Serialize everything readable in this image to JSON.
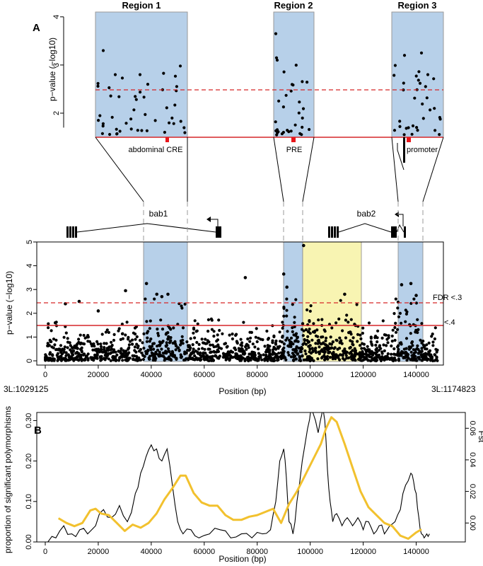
{
  "panel_a": {
    "label": "A",
    "top_ylabel": "p−value (−log10)",
    "main_ylabel": "p−value (−log10)",
    "xlabel": "Position (bp)",
    "left_coord": "3L:1029125",
    "right_coord": "3L:1174823",
    "gene1": "bab1",
    "gene2": "bab2",
    "fdr3_label": "FDR <.3",
    "fdr4_label": "<.4",
    "regions": [
      {
        "title": "Region 1",
        "feature": "abdominal CRE"
      },
      {
        "title": "Region 2",
        "feature": "PRE"
      },
      {
        "title": "Region 3",
        "feature": "promoter"
      }
    ]
  },
  "panel_b": {
    "label": "B",
    "ylabel_left": "proportion of significant polymorphisms",
    "ylabel_right": "Fst",
    "xlabel": "Position (bp)"
  },
  "colors": {
    "region_fill": "#b7d0e9",
    "highlight_fill": "#f8f4b2",
    "threshold_red": "#d62728",
    "fst_line": "#f2c12e"
  },
  "chart_data": [
    {
      "type": "scatter",
      "title": "",
      "xlabel": "Position (bp)",
      "ylabel": "p−value (−log10)",
      "xlim": [
        0,
        150000
      ],
      "ylim": [
        0,
        5
      ],
      "xticks": [
        0,
        20000,
        40000,
        60000,
        80000,
        100000,
        120000,
        140000
      ],
      "yticks": [
        0,
        1,
        2,
        3,
        4,
        5
      ],
      "regions_x": [
        [
          37000,
          53000
        ],
        [
          89000,
          96000
        ],
        [
          131500,
          141000
        ]
      ],
      "highlight_x": [
        96000,
        118000
      ],
      "thresholds": [
        {
          "label": "FDR <.3",
          "y": 2.45,
          "style": "dashed"
        },
        {
          "label": "<.4",
          "y": 1.47,
          "style": "solid"
        }
      ],
      "gene_bab1": [
        8000,
        64000
      ],
      "gene_bab2": [
        102000,
        130000
      ],
      "notable_points": [
        [
          3800,
          1.6
        ],
        [
          7600,
          2.4
        ],
        [
          12800,
          2.5
        ],
        [
          20000,
          2.1
        ],
        [
          30300,
          2.95
        ],
        [
          38200,
          3.25
        ],
        [
          42100,
          2.8
        ],
        [
          44000,
          2.7
        ],
        [
          46300,
          2.8
        ],
        [
          75500,
          3.5
        ],
        [
          90000,
          3.65
        ],
        [
          91200,
          3.1
        ],
        [
          97500,
          4.85
        ],
        [
          113000,
          2.8
        ],
        [
          134500,
          3.2
        ],
        [
          138000,
          3.25
        ],
        [
          140000,
          2.75
        ]
      ]
    },
    {
      "type": "line",
      "title": "",
      "xlabel": "Position (bp)",
      "ylabel": "proportion of significant polymorphisms",
      "y2label": "Fst",
      "xlim": [
        0,
        150000
      ],
      "ylim": [
        0,
        0.32
      ],
      "y2lim": [
        -0.012,
        0.07
      ],
      "xticks": [
        0,
        20000,
        40000,
        60000,
        80000,
        100000,
        120000,
        140000
      ],
      "yticks": [
        0.0,
        0.1,
        0.2,
        0.3
      ],
      "y2ticks": [
        0.0,
        0.02,
        0.04,
        0.06
      ],
      "series": [
        {
          "name": "proportion of significant polymorphisms",
          "x": [
            1000,
            4000,
            7000,
            10000,
            13000,
            16000,
            19000,
            22000,
            25000,
            28000,
            31000,
            34000,
            36000,
            38000,
            40000,
            42000,
            44000,
            46000,
            48000,
            50000,
            52000,
            55000,
            58000,
            62000,
            66000,
            70000,
            74000,
            78000,
            82000,
            85000,
            87000,
            88500,
            90000,
            91000,
            92000,
            93500,
            95000,
            97000,
            99000,
            100500,
            101000,
            103000,
            104500,
            105500,
            106500,
            107500,
            108500,
            110000,
            112000,
            114000,
            116000,
            118000,
            120000,
            122000,
            124000,
            126000,
            128000,
            130000,
            132000,
            134000,
            136000,
            138000,
            139000,
            140000,
            141000,
            142000,
            143000,
            144000,
            145000
          ],
          "values": [
            0.0,
            0.01,
            0.04,
            0.02,
            0.03,
            0.02,
            0.04,
            0.08,
            0.06,
            0.09,
            0.05,
            0.12,
            0.17,
            0.21,
            0.24,
            0.23,
            0.2,
            0.23,
            0.14,
            0.05,
            0.02,
            0.03,
            0.01,
            0.02,
            0.03,
            0.01,
            0.02,
            0.01,
            0.02,
            0.03,
            0.1,
            0.2,
            0.23,
            0.16,
            0.05,
            0.02,
            0.1,
            0.2,
            0.28,
            0.34,
            0.32,
            0.27,
            0.32,
            0.3,
            0.18,
            0.1,
            0.05,
            0.07,
            0.04,
            0.06,
            0.04,
            0.06,
            0.03,
            0.05,
            0.02,
            0.04,
            0.02,
            0.04,
            0.05,
            0.08,
            0.14,
            0.17,
            0.15,
            0.12,
            0.06,
            0.02,
            0.01,
            0.02,
            0.02
          ]
        },
        {
          "name": "Fst",
          "x": [
            5000,
            8000,
            11000,
            14000,
            17000,
            19000,
            21000,
            24000,
            27000,
            30000,
            33000,
            36000,
            39000,
            42000,
            45000,
            48000,
            51000,
            53000,
            56000,
            59000,
            62000,
            65000,
            68000,
            71000,
            74000,
            77000,
            80000,
            83000,
            86000,
            89000,
            92000,
            95000,
            98000,
            101000,
            104000,
            106000,
            108000,
            110000,
            113000,
            116000,
            119000,
            122000,
            125000,
            128000,
            131000,
            134000,
            137000,
            140000,
            142000
          ],
          "values": [
            0.003,
            0.0,
            -0.002,
            0.0,
            0.008,
            0.009,
            0.006,
            0.005,
            0.0,
            -0.005,
            -0.001,
            -0.003,
            0.0,
            0.006,
            0.015,
            0.022,
            0.03,
            0.03,
            0.019,
            0.013,
            0.011,
            0.011,
            0.005,
            0.002,
            0.002,
            0.004,
            0.005,
            0.007,
            0.009,
            0.0,
            0.012,
            0.02,
            0.03,
            0.04,
            0.05,
            0.06,
            0.067,
            0.064,
            0.05,
            0.035,
            0.02,
            0.01,
            0.005,
            0.0,
            -0.002,
            -0.008,
            -0.01,
            -0.006,
            -0.004
          ]
        }
      ]
    }
  ]
}
